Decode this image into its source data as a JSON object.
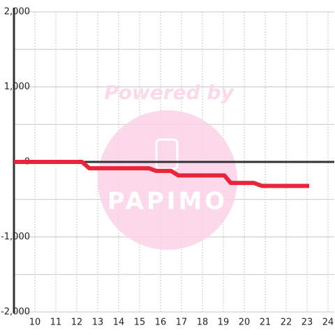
{
  "chart_data": {
    "type": "line",
    "watermark": {
      "title": "Powered by",
      "logo": "PAPIMO"
    },
    "x": [
      9,
      12.25,
      12.6,
      15.45,
      15.8,
      16.5,
      16.85,
      19.05,
      19.35,
      20.45,
      20.85,
      23.1
    ],
    "series": [
      {
        "color": "#e8253a",
        "values": [
          0,
          0,
          -85,
          -85,
          -120,
          -120,
          -180,
          -180,
          -280,
          -280,
          -320,
          -320
        ]
      }
    ],
    "xlim": [
      9,
      24.3
    ],
    "xticks": [
      10,
      11,
      12,
      13,
      14,
      15,
      16,
      17,
      18,
      19,
      20,
      21,
      22,
      23,
      24
    ],
    "ylim": [
      -2000,
      2000
    ],
    "yticks": [
      {
        "value": -2000,
        "label": "-2,000"
      },
      {
        "value": -1000,
        "label": "-1,000"
      },
      0,
      {
        "value": 1000,
        "label": "1,000"
      },
      {
        "value": 2000,
        "label": "2,000"
      }
    ],
    "minor_yticks": [
      -1500,
      -500,
      500,
      1500
    ],
    "grid": true
  }
}
